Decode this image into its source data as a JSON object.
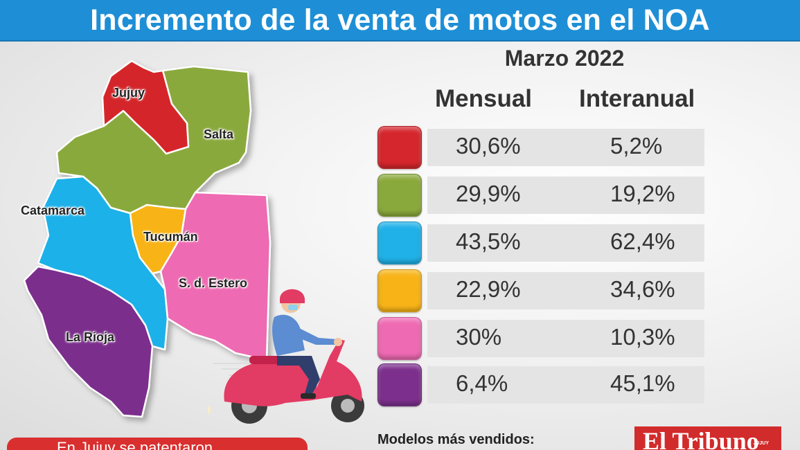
{
  "header": {
    "title": "Incremento de la venta de motos en el NOA"
  },
  "period": "Marzo 2022",
  "columns": {
    "monthly": "Mensual",
    "yearly": "Interanual"
  },
  "regions": [
    {
      "name": "Jujuy",
      "color": "#d4262c",
      "monthly": "30,6%",
      "yearly": "5,2%"
    },
    {
      "name": "Salta",
      "color": "#8aa93c",
      "monthly": "29,9%",
      "yearly": "19,2%"
    },
    {
      "name": "Catamarca",
      "color": "#1fb1e8",
      "monthly": "43,5%",
      "yearly": "62,4%"
    },
    {
      "name": "Tucumán",
      "color": "#f8b417",
      "monthly": "22,9%",
      "yearly": "34,6%"
    },
    {
      "name": "S. d. Estero",
      "color": "#ee6ab2",
      "monthly": "30%",
      "yearly": "10,3%"
    },
    {
      "name": "La Rioja",
      "color": "#7c2f8c",
      "monthly": "6,4%",
      "yearly": "45,1%"
    }
  ],
  "footer": {
    "left_text": "En Jujuy se patentaron",
    "models_label": "Modelos más vendidos:",
    "logo_text": "El Tribuno",
    "logo_sub": "JUJUY"
  }
}
